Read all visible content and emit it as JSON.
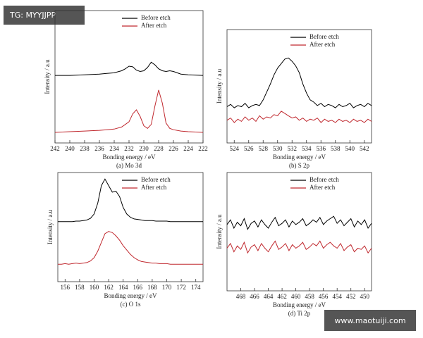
{
  "watermark_top": "TG: MYYJJPP",
  "watermark_bottom": "www.maotuiji.com",
  "chart_data": [
    {
      "type": "line",
      "caption": "(a) Mo 3d",
      "xlabel": "Bonding energy / eV",
      "ylabel": "Intensity / a.u",
      "legend": "top-right",
      "x": [
        242,
        240,
        238,
        236,
        235,
        234,
        233,
        232.5,
        232,
        231.5,
        231,
        230.5,
        230,
        229.5,
        229,
        228.5,
        228,
        227.5,
        227,
        226.5,
        226,
        225,
        224,
        222
      ],
      "series": [
        {
          "name": "Before etch",
          "color": "#000000",
          "values": [
            51,
            51,
            51.5,
            52,
            52.5,
            53,
            54.5,
            56,
            58,
            57.5,
            55,
            54,
            54.5,
            57,
            61,
            59,
            56,
            54.5,
            54,
            54.5,
            54,
            52,
            51.5,
            51
          ]
        },
        {
          "name": "After etch",
          "color": "#c0282e",
          "values": [
            8,
            8.5,
            9,
            9.5,
            10,
            10.5,
            12,
            14,
            16,
            22,
            25,
            20,
            13,
            11,
            14,
            28,
            40,
            30,
            15,
            11,
            10,
            9,
            8.5,
            8
          ]
        }
      ],
      "xlim": [
        242,
        222
      ],
      "xticks": [
        242,
        240,
        238,
        236,
        234,
        232,
        230,
        228,
        226,
        224,
        222
      ],
      "ylim": [
        0,
        100
      ]
    },
    {
      "type": "line",
      "caption": "(b) S 2p",
      "xlabel": "Bonding energy / eV",
      "ylabel": "Intensity / a.u",
      "legend": "top-right",
      "x": [
        523,
        523.5,
        524,
        524.5,
        525,
        525.5,
        526,
        526.5,
        527,
        527.5,
        528,
        528.5,
        529,
        529.5,
        530,
        530.5,
        531,
        531.5,
        532,
        532.5,
        533,
        533.5,
        534,
        534.5,
        535,
        535.5,
        536,
        536.5,
        537,
        537.5,
        538,
        538.5,
        539,
        539.5,
        540,
        540.5,
        541,
        541.5,
        542,
        542.5,
        543
      ],
      "series": [
        {
          "name": "Before etch",
          "color": "#000000",
          "values": [
            32,
            34,
            31,
            33,
            32,
            35,
            31,
            33,
            34,
            33,
            38,
            45,
            52,
            60,
            66,
            70,
            74,
            75,
            72,
            68,
            62,
            52,
            44,
            38,
            36,
            33,
            35,
            32,
            34,
            33,
            31,
            34,
            32,
            33,
            35,
            31,
            33,
            34,
            32,
            35,
            33
          ]
        },
        {
          "name": "After etch",
          "color": "#c0282e",
          "values": [
            20,
            22,
            18,
            21,
            19,
            23,
            20,
            22,
            19,
            24,
            21,
            23,
            22,
            25,
            24,
            28,
            26,
            24,
            22,
            23,
            20,
            22,
            19,
            21,
            20,
            22,
            18,
            21,
            19,
            20,
            18,
            21,
            19,
            20,
            18,
            21,
            19,
            20,
            18,
            21,
            19
          ]
        }
      ],
      "xlim": [
        523,
        543
      ],
      "xticks": [
        524,
        526,
        528,
        530,
        532,
        534,
        536,
        538,
        540,
        542
      ],
      "ylim": [
        0,
        100
      ]
    },
    {
      "type": "line",
      "caption": "(c) O 1s",
      "xlabel": "Bonding energy / eV",
      "ylabel": "Intensity / a.u",
      "legend": "top-right",
      "x": [
        155,
        155.5,
        156,
        156.5,
        157,
        157.5,
        158,
        158.5,
        159,
        159.5,
        160,
        160.5,
        161,
        161.5,
        162,
        162.5,
        163,
        163.5,
        164,
        164.5,
        165,
        165.5,
        166,
        166.5,
        167,
        167.5,
        168,
        168.5,
        169,
        169.5,
        170,
        170.5,
        171,
        171.5,
        172,
        172.5,
        173,
        173.5,
        174,
        174.5,
        175
      ],
      "series": [
        {
          "name": "Before etch",
          "color": "#000000",
          "values": [
            55,
            55,
            55,
            55,
            55,
            55.5,
            55.5,
            56,
            56.5,
            58,
            62,
            72,
            88,
            94,
            88,
            82,
            83,
            78,
            68,
            62,
            59,
            57.5,
            57,
            56.5,
            56,
            56,
            56,
            55.5,
            55.5,
            55.5,
            55.5,
            55,
            55,
            55,
            55,
            55,
            55,
            55,
            55,
            55,
            55
          ]
        },
        {
          "name": "After etch",
          "color": "#c0282e",
          "values": [
            16,
            16,
            16.5,
            16,
            16.5,
            17,
            16.5,
            17,
            17.5,
            19,
            22,
            28,
            36,
            44,
            46,
            45,
            42,
            38,
            33,
            29,
            25,
            22,
            20,
            18.5,
            18,
            17.5,
            17,
            17,
            16.5,
            16.5,
            16.5,
            16,
            16,
            16,
            16,
            16,
            16,
            16,
            16,
            16,
            16
          ]
        }
      ],
      "xlim": [
        155,
        175
      ],
      "xticks": [
        156,
        158,
        160,
        162,
        164,
        166,
        168,
        170,
        172,
        174
      ],
      "ylim": [
        0,
        100
      ]
    },
    {
      "type": "line",
      "caption": "(d) Ti 2p",
      "xlabel": "Bonding energy / eV",
      "ylabel": "Intensity / a.u",
      "legend": "top-right",
      "x": [
        470,
        469.5,
        469,
        468.5,
        468,
        467.5,
        467,
        466.5,
        466,
        465.5,
        465,
        464.5,
        464,
        463.5,
        463,
        462.5,
        462,
        461.5,
        461,
        460.5,
        460,
        459.5,
        459,
        458.5,
        458,
        457.5,
        457,
        456.5,
        456,
        455.5,
        455,
        454.5,
        454,
        453.5,
        453,
        452.5,
        452,
        451.5,
        451,
        450.5,
        450,
        449.5,
        449
      ],
      "series": [
        {
          "name": "Before etch",
          "color": "#000000",
          "values": [
            56,
            60,
            53,
            58,
            55,
            61,
            52,
            57,
            59,
            54,
            60,
            56,
            53,
            58,
            62,
            55,
            57,
            60,
            54,
            59,
            56,
            58,
            61,
            55,
            57,
            60,
            58,
            62,
            56,
            59,
            61,
            63,
            57,
            60,
            55,
            58,
            61,
            54,
            59,
            56,
            60,
            53,
            57
          ]
        },
        {
          "name": "After etch",
          "color": "#c0282e",
          "values": [
            36,
            40,
            33,
            38,
            35,
            41,
            32,
            37,
            39,
            34,
            40,
            36,
            33,
            38,
            42,
            35,
            37,
            40,
            34,
            39,
            36,
            38,
            41,
            35,
            37,
            40,
            38,
            42,
            36,
            39,
            41,
            38,
            36,
            40,
            34,
            37,
            39,
            33,
            36,
            35,
            38,
            32,
            36
          ]
        }
      ],
      "xlim": [
        470,
        449
      ],
      "xticks": [
        468,
        466,
        464,
        462,
        460,
        458,
        456,
        454,
        452,
        450
      ],
      "ylim": [
        0,
        100
      ]
    }
  ]
}
